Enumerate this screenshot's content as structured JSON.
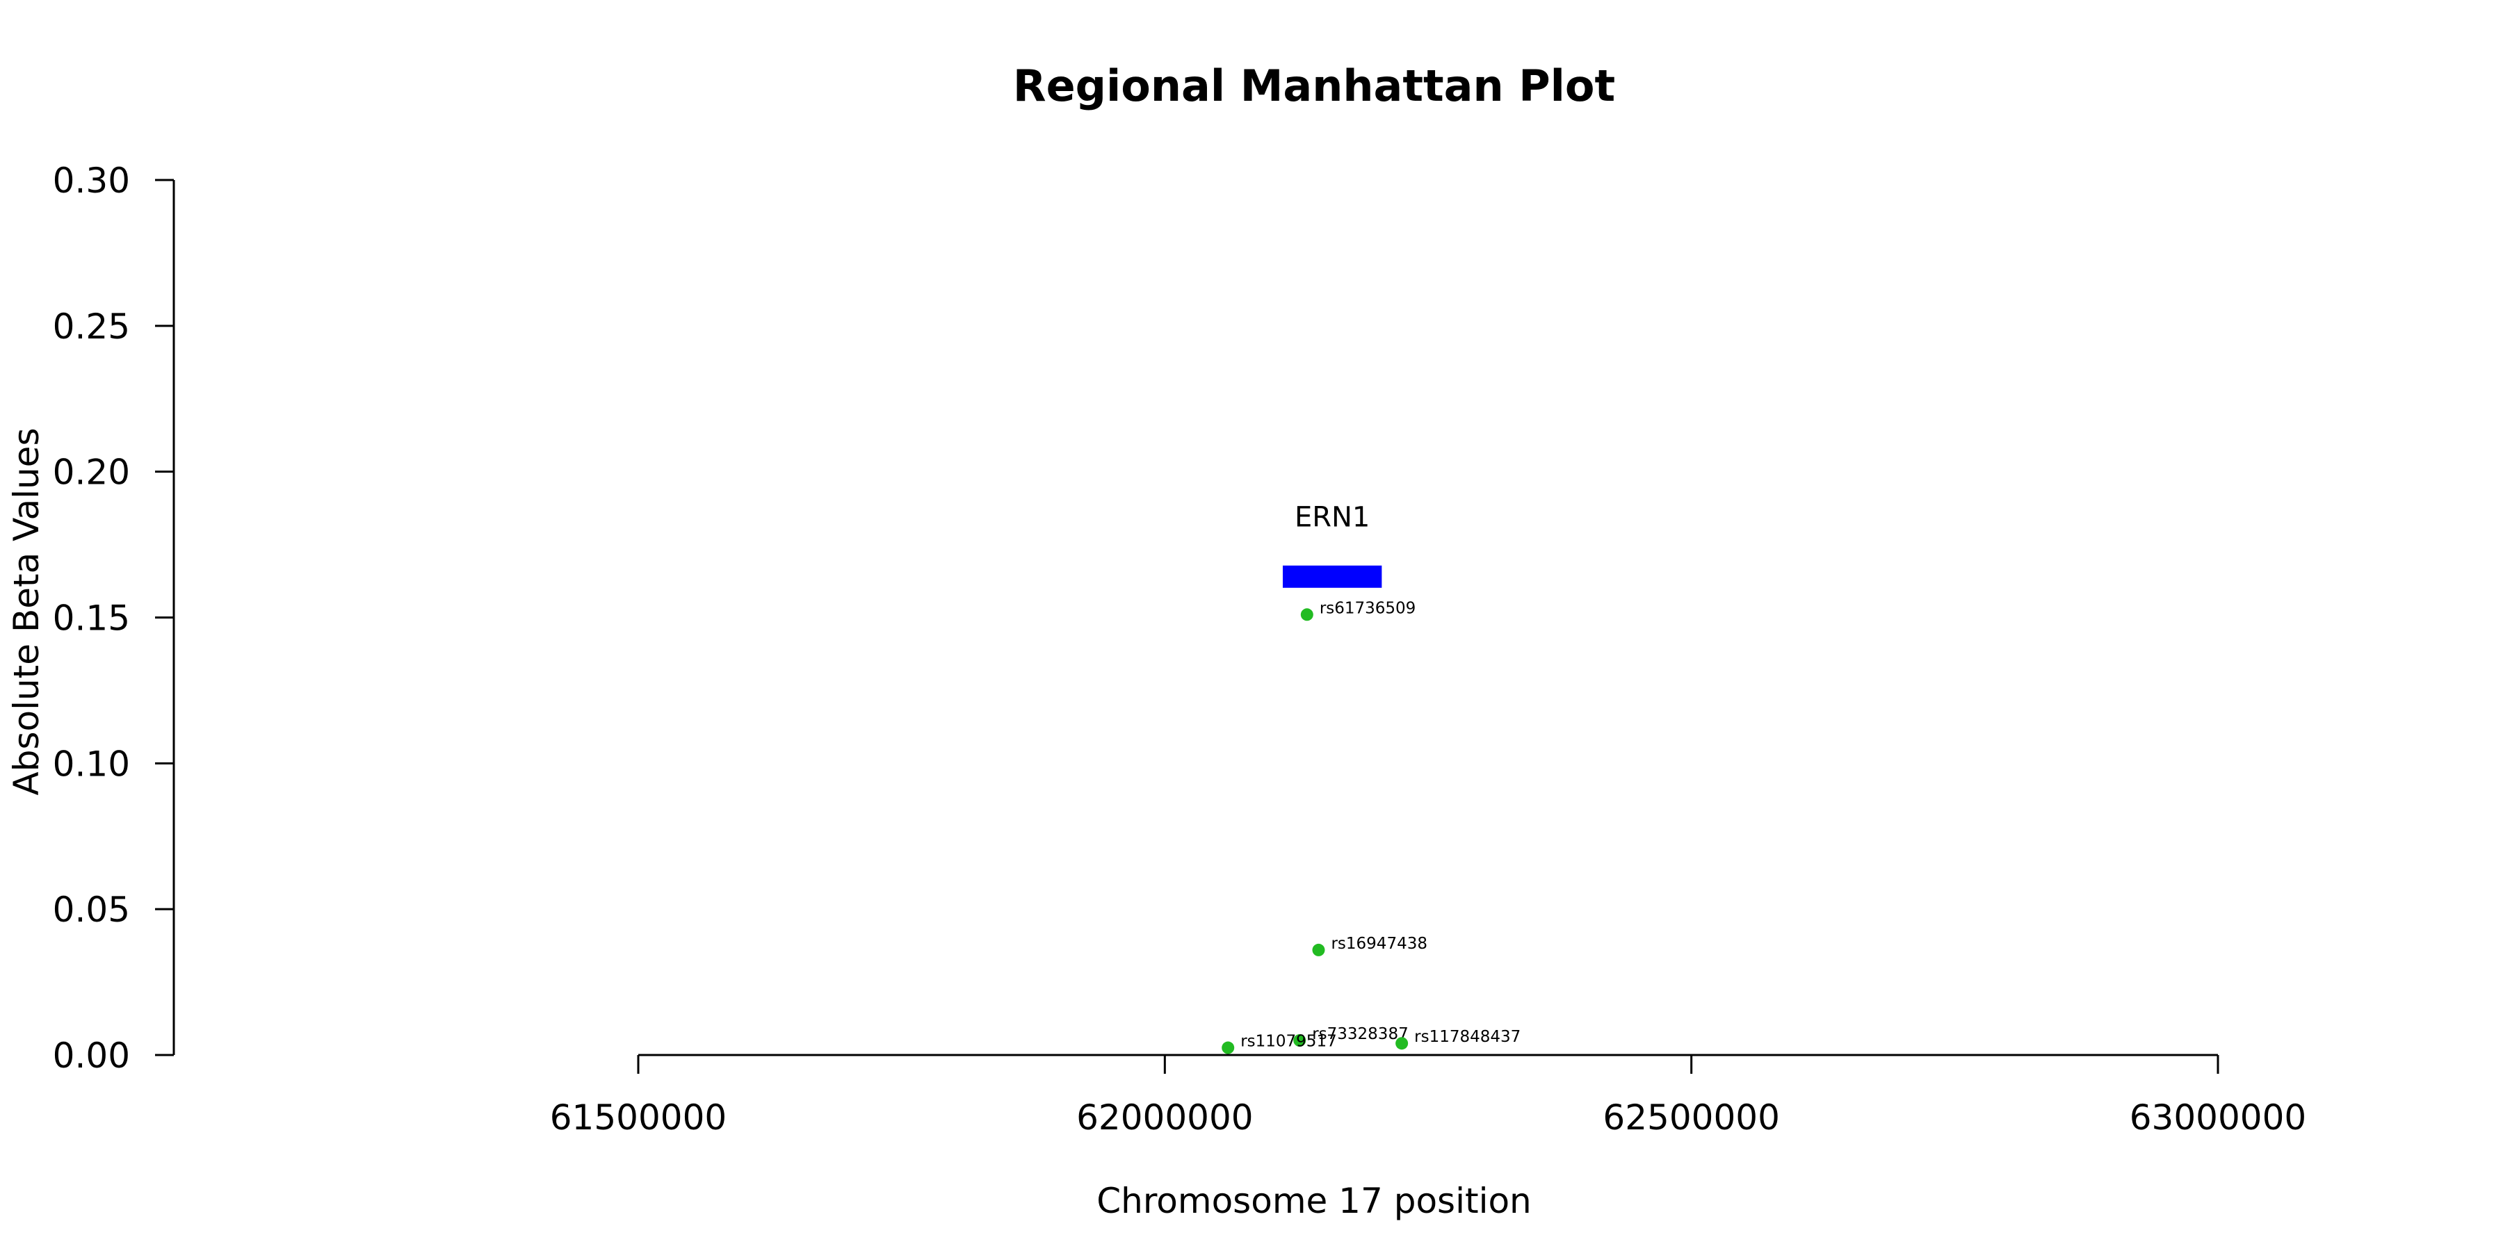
{
  "chart_data": {
    "type": "scatter",
    "title": "Regional Manhattan Plot",
    "xlabel": "Chromosome 17 position",
    "ylabel": "Absolute Beta Values",
    "xlim": [
      61500000,
      63000000
    ],
    "ylim": [
      0,
      0.3
    ],
    "x_ticks": [
      61500000,
      62000000,
      62500000,
      63000000
    ],
    "x_tick_labels": [
      "61500000",
      "62000000",
      "62500000",
      "63000000"
    ],
    "y_ticks": [
      0,
      0.05,
      0.1,
      0.15,
      0.2,
      0.25,
      0.3
    ],
    "y_tick_labels": [
      "0.00",
      "0.05",
      "0.10",
      "0.15",
      "0.20",
      "0.25",
      "0.30"
    ],
    "grid": false,
    "point_color": "#22bb22",
    "points": [
      {
        "label": "rs61736509",
        "x": 62135000,
        "y": 0.151
      },
      {
        "label": "rs16947438",
        "x": 62146000,
        "y": 0.036
      },
      {
        "label": "rs73328387",
        "x": 62128000,
        "y": 0.005
      },
      {
        "label": "rs11079517",
        "x": 62060000,
        "y": 0.0025
      },
      {
        "label": "rs117848437",
        "x": 62225000,
        "y": 0.004
      }
    ],
    "genes": [
      {
        "name": "ERN1",
        "start": 62112000,
        "end": 62206000,
        "y": 0.164,
        "color": "#0000ff"
      }
    ]
  }
}
